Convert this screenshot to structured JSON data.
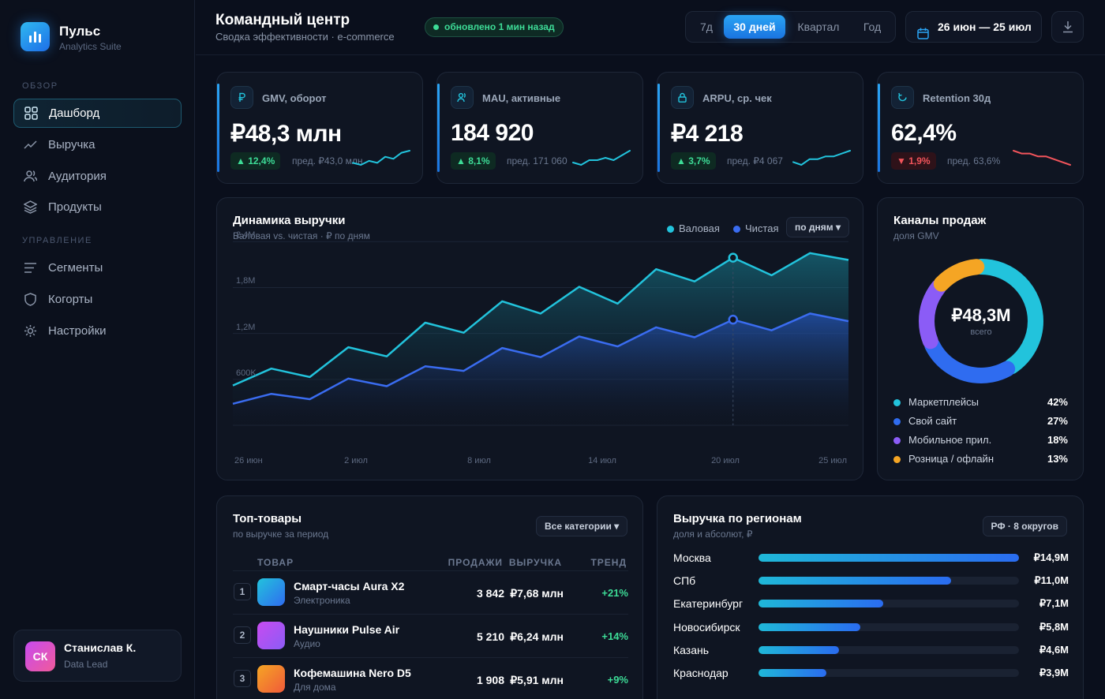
{
  "app": {
    "name": "Пульс",
    "subtitle": "Analytics Suite"
  },
  "sidebar": {
    "sections": [
      {
        "label": "ОБЗОР"
      },
      {
        "label": "УПРАВЛЕНИЕ"
      }
    ],
    "items": [
      {
        "label": "Дашборд",
        "icon": "grid-icon",
        "active": true
      },
      {
        "label": "Выручка",
        "icon": "trend-icon"
      },
      {
        "label": "Аудитория",
        "icon": "users-icon"
      },
      {
        "label": "Продукты",
        "icon": "layers-icon"
      },
      {
        "label": "Сегменты",
        "icon": "list-icon"
      },
      {
        "label": "Когорты",
        "icon": "shield-icon"
      },
      {
        "label": "Настройки",
        "icon": "gear-icon"
      }
    ]
  },
  "user": {
    "initials": "СК",
    "name": "Станислав К.",
    "role": "Data Lead"
  },
  "header": {
    "title": "Командный центр",
    "subtitle": "Сводка эффективности · e-commerce",
    "status": "обновлено 1 мин назад",
    "periods": [
      "7д",
      "30 дней",
      "Квартал",
      "Год"
    ],
    "active_period": "30 дней",
    "date_range": "26 июн — 25 июл"
  },
  "kpis": [
    {
      "label": "GMV, оборот",
      "icon": "ruble-icon",
      "value": "₽48,3 млн",
      "delta": "▲ 12,4%",
      "trend": "up",
      "prev": "пред. ₽43,0 млн",
      "spark": [
        2,
        1,
        3,
        2,
        5,
        4,
        7,
        8
      ]
    },
    {
      "label": "MAU, активные",
      "icon": "user-icon",
      "value": "184 920",
      "delta": "▲ 8,1%",
      "trend": "up",
      "prev": "пред. 171 060",
      "spark": [
        2,
        1,
        3,
        3,
        4,
        3,
        5,
        7
      ]
    },
    {
      "label": "ARPU, ср. чек",
      "icon": "lock-icon",
      "value": "₽4 218",
      "delta": "▲ 3,7%",
      "trend": "up",
      "prev": "пред. ₽4 067",
      "spark": [
        3,
        2,
        4,
        4,
        5,
        5,
        6,
        7
      ]
    },
    {
      "label": "Retention 30д",
      "icon": "refresh-icon",
      "value": "62,4%",
      "delta": "▼ 1,9%",
      "trend": "down",
      "prev": "пред. 63,6%",
      "spark": [
        7,
        6,
        6,
        5,
        5,
        4,
        3,
        2
      ]
    }
  ],
  "revenue_chart": {
    "title": "Динамика выручки",
    "subtitle": "Валовая vs. чистая · ₽ по дням",
    "filter": "по дням ▾",
    "legend": [
      {
        "name": "Валовая",
        "color": "#22c3dc"
      },
      {
        "name": "Чистая",
        "color": "#3a6cf0"
      }
    ]
  },
  "channels": {
    "title": "Каналы продаж",
    "subtitle": "доля GMV",
    "center_value": "₽48,3M",
    "center_label": "всего",
    "items": [
      {
        "name": "Маркетплейсы",
        "pct": "42%",
        "color": "#22c3dc"
      },
      {
        "name": "Свой сайт",
        "pct": "27%",
        "color": "#2f6cf0"
      },
      {
        "name": "Мобильное прил.",
        "pct": "18%",
        "color": "#8b5cf6"
      },
      {
        "name": "Розница / офлайн",
        "pct": "13%",
        "color": "#f5a524"
      }
    ]
  },
  "top_products": {
    "title": "Топ-товары",
    "subtitle": "по выручке за период",
    "filter": "Все категории ▾",
    "columns": [
      "ТОВАР",
      "ПРОДАЖИ",
      "ВЫРУЧКА",
      "ТРЕНД"
    ],
    "rows": [
      {
        "rank": "1",
        "name": "Смарт-часы Aura X2",
        "category": "Электроника",
        "sales": "3 842",
        "revenue": "₽7,68 млн",
        "trend": "+21%",
        "colors": [
          "#22c3dc",
          "#2f6cf0"
        ]
      },
      {
        "rank": "2",
        "name": "Наушники Pulse Air",
        "category": "Аудио",
        "sales": "5 210",
        "revenue": "₽6,24 млн",
        "trend": "+14%",
        "colors": [
          "#c84bf0",
          "#8b5cf6"
        ]
      },
      {
        "rank": "3",
        "name": "Кофемашина Nero D5",
        "category": "Для дома",
        "sales": "1 908",
        "revenue": "₽5,91 млн",
        "trend": "+9%",
        "colors": [
          "#f5a524",
          "#f05a3a"
        ]
      }
    ]
  },
  "regions": {
    "title": "Выручка по регионам",
    "subtitle": "доля и абсолют, ₽",
    "badge": "РФ · 8 округов",
    "rows": [
      {
        "name": "Москва",
        "value": "₽14,9M",
        "share": 1.0
      },
      {
        "name": "СПб",
        "value": "₽11,0M",
        "share": 0.74
      },
      {
        "name": "Екатеринбург",
        "value": "₽7,1M",
        "share": 0.48
      },
      {
        "name": "Новосибирск",
        "value": "₽5,8M",
        "share": 0.39
      },
      {
        "name": "Казань",
        "value": "₽4,6M",
        "share": 0.31
      },
      {
        "name": "Краснодар",
        "value": "₽3,9M",
        "share": 0.26
      }
    ]
  },
  "chart_data": [
    {
      "type": "area",
      "title": "Динамика выручки",
      "subtitle": "Валовая vs. чистая · ₽ по дням",
      "x_ticks": [
        "26 июн",
        "2 июл",
        "8 июл",
        "14 июл",
        "20 июл",
        "25 июл"
      ],
      "y_ticks": [
        "600K",
        "1,2M",
        "1,8M",
        "2,4M"
      ],
      "ylim": [
        0,
        2400000
      ],
      "grid": true,
      "legend": "top-right",
      "series": [
        {
          "name": "Валовая",
          "color": "#22c3dc",
          "values": [
            520000,
            740000,
            630000,
            1020000,
            900000,
            1340000,
            1210000,
            1620000,
            1460000,
            1810000,
            1590000,
            2040000,
            1880000,
            2190000,
            1960000,
            2250000,
            2160000
          ]
        },
        {
          "name": "Чистая",
          "color": "#3a6cf0",
          "values": [
            280000,
            410000,
            340000,
            610000,
            510000,
            770000,
            710000,
            1010000,
            890000,
            1160000,
            1030000,
            1280000,
            1150000,
            1380000,
            1240000,
            1460000,
            1360000
          ]
        }
      ],
      "highlight_index": 13
    },
    {
      "type": "pie",
      "title": "Каналы продаж",
      "categories": [
        "Маркетплейсы",
        "Свой сайт",
        "Мобильное прил.",
        "Розница / офлайн"
      ],
      "values": [
        42,
        27,
        18,
        13
      ],
      "colors": [
        "#22c3dc",
        "#2f6cf0",
        "#8b5cf6",
        "#f5a524"
      ]
    },
    {
      "type": "bar",
      "title": "Выручка по регионам",
      "categories": [
        "Москва",
        "СПб",
        "Екатеринбург",
        "Новосибирск",
        "Казань",
        "Краснодар"
      ],
      "values": [
        14.9,
        11.0,
        7.1,
        5.8,
        4.6,
        3.9
      ]
    }
  ]
}
